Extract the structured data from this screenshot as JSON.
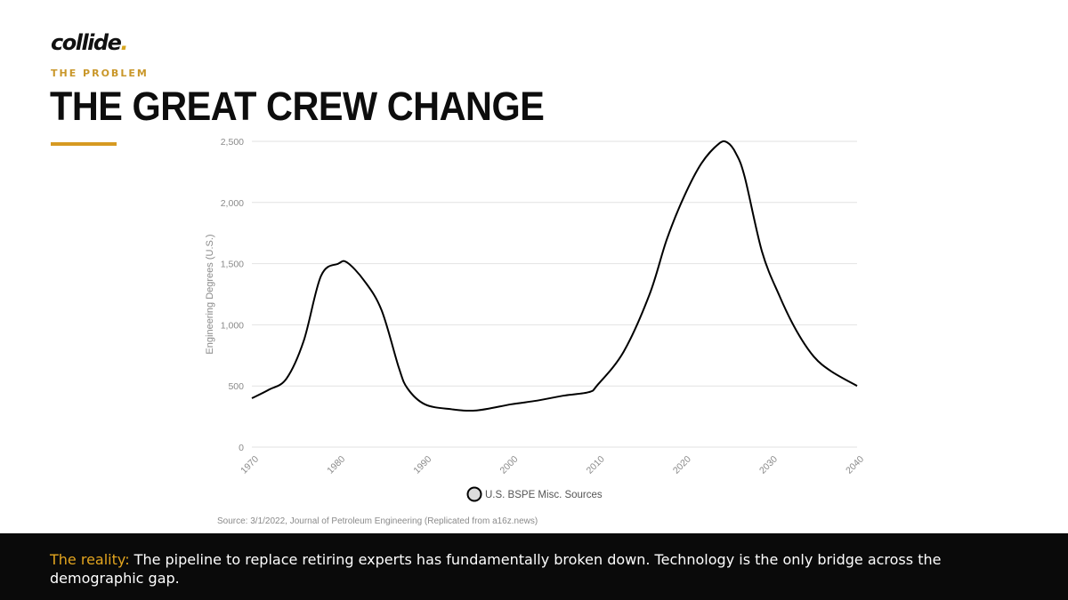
{
  "header": {
    "logo_text": "collide",
    "logo_dot": ".",
    "eyebrow": "THE PROBLEM",
    "title": "THE GREAT CREW CHANGE"
  },
  "colors": {
    "accent": "#d69a22",
    "line": "#000000",
    "grid": "#e2e2e2",
    "footer_bg": "#0a0a0a"
  },
  "chart_data": {
    "type": "line",
    "title": "",
    "xlabel": "",
    "ylabel": "Engineering Degrees (U.S.)",
    "xlim": [
      1970,
      2040
    ],
    "ylim": [
      0,
      2500
    ],
    "x_ticks": [
      "1970",
      "1980",
      "1990",
      "2000",
      "2010",
      "2020",
      "2030",
      "2040"
    ],
    "y_ticks": [
      "0",
      "500",
      "1,000",
      "1,500",
      "2,000",
      "2,500"
    ],
    "grid": true,
    "legend_position": "bottom",
    "series": [
      {
        "name": "U.S. BSPE Misc. Sources",
        "x": [
          1970,
          1972,
          1974,
          1976,
          1978,
          1980,
          1981,
          1983,
          1985,
          1987,
          1988,
          1990,
          1993,
          1996,
          2000,
          2003,
          2006,
          2009,
          2010,
          2013,
          2016,
          2018,
          2020,
          2022,
          2024,
          2025,
          2026,
          2027,
          2029,
          2031,
          2033,
          2035,
          2037,
          2040
        ],
        "y": [
          400,
          470,
          560,
          870,
          1400,
          1500,
          1510,
          1360,
          1120,
          650,
          480,
          350,
          310,
          300,
          350,
          380,
          420,
          450,
          510,
          780,
          1250,
          1700,
          2050,
          2320,
          2480,
          2490,
          2400,
          2210,
          1600,
          1240,
          950,
          740,
          620,
          500
        ]
      }
    ]
  },
  "legend": {
    "label": "U.S. BSPE Misc. Sources"
  },
  "source": "Source: 3/1/2022, Journal of Petroleum Engineering (Replicated from a16z.news)",
  "footer": {
    "label": "The reality:",
    "text": " The pipeline to replace retiring experts has fundamentally broken down. Technology is the only bridge across the demographic gap."
  }
}
